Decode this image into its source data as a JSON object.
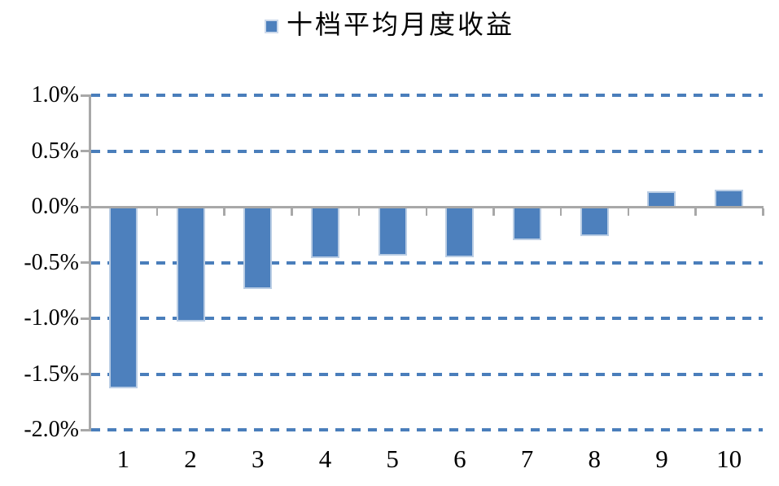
{
  "legend": {
    "label": "十档平均月度收益"
  },
  "chart_data": {
    "type": "bar",
    "title": "十档平均月度收益",
    "categories": [
      "1",
      "2",
      "3",
      "4",
      "5",
      "6",
      "7",
      "8",
      "9",
      "10"
    ],
    "values": [
      -1.63,
      -1.03,
      -0.74,
      -0.46,
      -0.44,
      -0.45,
      -0.3,
      -0.26,
      0.14,
      0.15
    ],
    "unit": "percent",
    "ylim": [
      -2.0,
      1.0
    ],
    "ytick_step": 0.5,
    "yticks": [
      1.0,
      0.5,
      0.0,
      -0.5,
      -1.0,
      -1.5,
      -2.0
    ],
    "ytick_labels": [
      "1.0%",
      "0.5%",
      "0.0%",
      "-0.5%",
      "-1.0%",
      "-1.5%",
      "-2.0%"
    ],
    "xlabel": "",
    "ylabel": "",
    "legend_position": "top-center",
    "grid": "horizontal-dashed",
    "colors": {
      "bar_fill": "#4d80bd",
      "bar_border": "#bacde4",
      "legend_marker_border": "#ccd9eb",
      "gridline": "#4a7ebb",
      "axis": "#a8a8a8",
      "text": "#000000",
      "background": "#ffffff"
    }
  }
}
